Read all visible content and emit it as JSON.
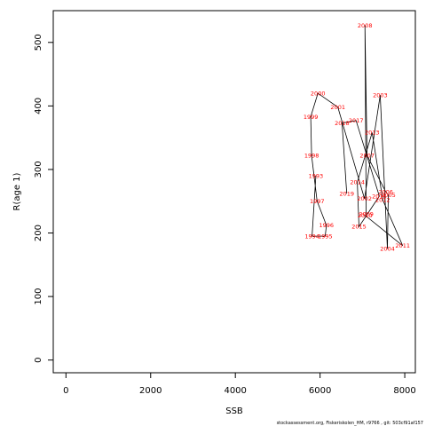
{
  "chart_data": {
    "type": "line",
    "title": "",
    "xlabel": "SSB",
    "ylabel": "R(age 1)",
    "xlim": [
      -300,
      8250
    ],
    "ylim": [
      -20,
      550
    ],
    "x_ticks": [
      0,
      2000,
      4000,
      6000,
      8000
    ],
    "y_ticks": [
      0,
      100,
      200,
      300,
      400,
      500
    ],
    "grid": false,
    "line_color": "#000000",
    "label_color": "#ff0000",
    "points": [
      {
        "label": "1993",
        "x": 5900,
        "y": 290
      },
      {
        "label": "1994",
        "x": 5810,
        "y": 195
      },
      {
        "label": "1995",
        "x": 6120,
        "y": 195
      },
      {
        "label": "1996",
        "x": 6150,
        "y": 212
      },
      {
        "label": "1997",
        "x": 5930,
        "y": 250
      },
      {
        "label": "1998",
        "x": 5800,
        "y": 322
      },
      {
        "label": "1999",
        "x": 5780,
        "y": 383
      },
      {
        "label": "2000",
        "x": 5950,
        "y": 420
      },
      {
        "label": "2001",
        "x": 6420,
        "y": 398
      },
      {
        "label": "2002",
        "x": 7050,
        "y": 254
      },
      {
        "label": "2003",
        "x": 7420,
        "y": 417
      },
      {
        "label": "2004",
        "x": 7590,
        "y": 175
      },
      {
        "label": "2005",
        "x": 7610,
        "y": 260
      },
      {
        "label": "2006",
        "x": 7550,
        "y": 265
      },
      {
        "label": "2007",
        "x": 7110,
        "y": 322
      },
      {
        "label": "2008",
        "x": 7060,
        "y": 527
      },
      {
        "label": "2009",
        "x": 7090,
        "y": 230
      },
      {
        "label": "2010",
        "x": 7060,
        "y": 228
      },
      {
        "label": "2011",
        "x": 7950,
        "y": 180
      },
      {
        "label": "2012",
        "x": 7480,
        "y": 252
      },
      {
        "label": "2013",
        "x": 7230,
        "y": 358
      },
      {
        "label": "2014",
        "x": 6880,
        "y": 280
      },
      {
        "label": "2015",
        "x": 6920,
        "y": 210
      },
      {
        "label": "2016",
        "x": 7400,
        "y": 258
      },
      {
        "label": "2017",
        "x": 6850,
        "y": 377
      },
      {
        "label": "2018",
        "x": 6520,
        "y": 373
      },
      {
        "label": "2019",
        "x": 6630,
        "y": 262
      }
    ]
  },
  "footer_text": "stockassessment.org, Fiskeriskolen_HM, r9766 , git: 503cf91af157"
}
